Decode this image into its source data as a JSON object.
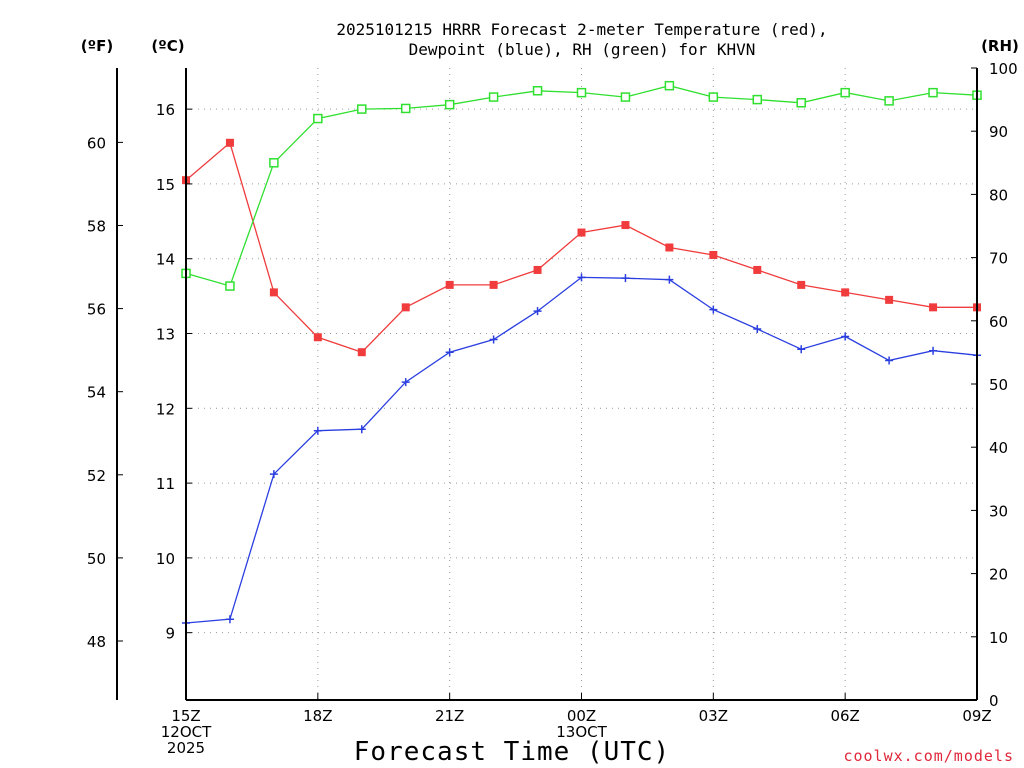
{
  "chart_data": {
    "type": "line",
    "title_lines": [
      "2025101215 HRRR Forecast 2-meter Temperature (red),",
      "Dewpoint (blue), RH (green) for KHVN"
    ],
    "xlabel": "Forecast Time (UTC)",
    "x_hours": [
      0,
      1,
      2,
      3,
      4,
      5,
      6,
      7,
      8,
      9,
      10,
      11,
      12,
      13,
      14,
      15,
      16,
      17,
      18
    ],
    "x_range": [
      0,
      18
    ],
    "x_ticks": [
      {
        "hour": 0,
        "lines": [
          "15Z",
          "12OCT",
          "2025"
        ]
      },
      {
        "hour": 3,
        "lines": [
          "18Z"
        ]
      },
      {
        "hour": 6,
        "lines": [
          "21Z"
        ]
      },
      {
        "hour": 9,
        "lines": [
          "00Z",
          "13OCT"
        ]
      },
      {
        "hour": 12,
        "lines": [
          "03Z"
        ]
      },
      {
        "hour": 15,
        "lines": [
          "06Z"
        ]
      },
      {
        "hour": 18,
        "lines": [
          "09Z"
        ]
      }
    ],
    "axes": {
      "celsius": {
        "label": "(ºC)",
        "range": [
          8.1,
          16.55
        ],
        "ticks": [
          9,
          10,
          11,
          12,
          13,
          14,
          15,
          16
        ]
      },
      "fahrenheit": {
        "label": "(ºF)",
        "ticks": [
          48,
          50,
          52,
          54,
          56,
          58,
          60
        ]
      },
      "rh": {
        "label": "(RH)",
        "range": [
          0,
          100
        ],
        "ticks": [
          0,
          10,
          20,
          30,
          40,
          50,
          60,
          70,
          80,
          90,
          100
        ]
      }
    },
    "grid": true,
    "series": [
      {
        "name": "2-meter Temperature",
        "axis": "celsius",
        "color": "#f03c3c",
        "marker": "filled-square",
        "values": [
          15.05,
          15.55,
          13.55,
          12.95,
          12.75,
          13.35,
          13.65,
          13.65,
          13.85,
          14.35,
          14.45,
          14.15,
          14.05,
          13.85,
          13.65,
          13.55,
          13.45,
          13.35,
          13.35
        ]
      },
      {
        "name": "Dewpoint",
        "axis": "celsius",
        "color": "#2b3fe0",
        "marker": "plus",
        "values": [
          9.13,
          9.18,
          11.12,
          11.7,
          11.72,
          12.35,
          12.75,
          12.92,
          13.3,
          13.75,
          13.74,
          13.72,
          13.32,
          13.06,
          12.79,
          12.96,
          12.64,
          12.77,
          12.71
        ]
      },
      {
        "name": "Relative Humidity",
        "axis": "rh",
        "color": "#2fe02f",
        "marker": "open-square",
        "values": [
          67.5,
          65.5,
          85.0,
          92.0,
          93.5,
          93.6,
          94.2,
          95.4,
          96.4,
          96.1,
          95.4,
          97.2,
          95.4,
          95.0,
          94.5,
          96.1,
          94.8,
          96.1,
          95.7
        ]
      }
    ],
    "credit": "coolwx.com/models"
  }
}
